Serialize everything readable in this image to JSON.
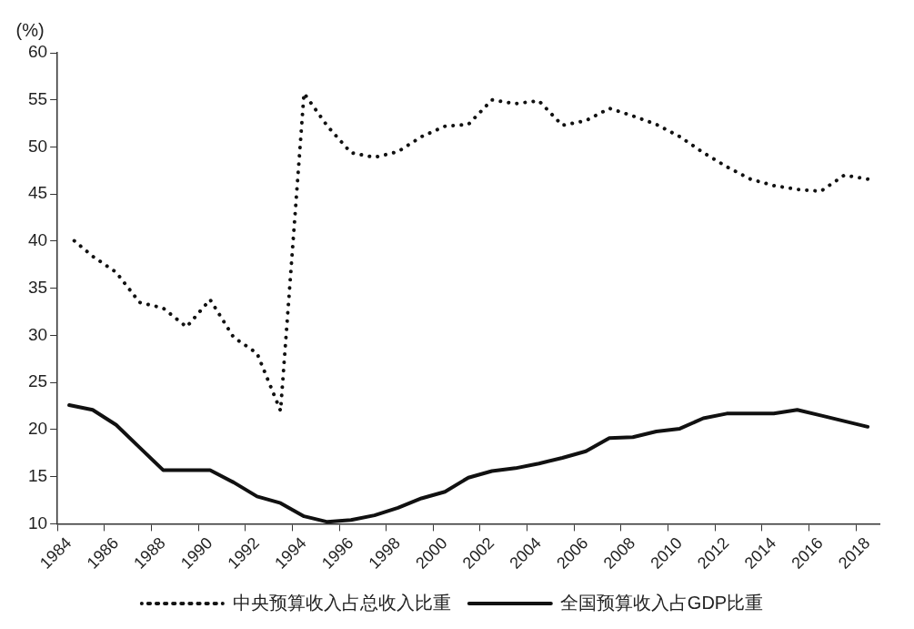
{
  "chart_data": {
    "type": "line",
    "ylabel": "(%)",
    "categories": [
      "1984",
      null,
      "1986",
      null,
      "1988",
      null,
      "1990",
      null,
      "1992",
      null,
      "1994",
      null,
      "1996",
      null,
      "1998",
      null,
      "2000",
      null,
      "2002",
      null,
      "2004",
      null,
      "2006",
      null,
      "2008",
      null,
      "2010",
      null,
      "2012",
      null,
      "2014",
      null,
      "2016",
      null,
      "2018"
    ],
    "series": [
      {
        "name": "中央预算收入占总收入比重",
        "color": "#111111",
        "line_style": "dotted",
        "values": [
          40.5,
          38.4,
          36.7,
          33.5,
          32.9,
          30.9,
          33.8,
          29.8,
          28.1,
          22.0,
          55.7,
          52.2,
          49.4,
          48.9,
          49.5,
          51.1,
          52.2,
          52.4,
          55.0,
          54.6,
          54.9,
          52.3,
          52.8,
          54.1,
          53.3,
          52.4,
          51.1,
          49.4,
          47.9,
          46.6,
          45.9,
          45.5,
          45.3,
          47.0,
          46.6
        ]
      },
      {
        "name": "全国预算收入占GDP比重",
        "color": "#111111",
        "line_style": "solid",
        "values": [
          22.6,
          22.1,
          20.5,
          18.1,
          15.7,
          15.7,
          15.7,
          14.4,
          12.9,
          12.2,
          10.8,
          10.2,
          10.4,
          10.9,
          11.7,
          12.7,
          13.4,
          14.9,
          15.6,
          15.9,
          16.4,
          17.0,
          17.7,
          19.1,
          19.2,
          19.8,
          20.1,
          21.2,
          21.7,
          21.7,
          21.7,
          22.1,
          21.5,
          20.9,
          20.3
        ]
      }
    ],
    "ylim": [
      10,
      60
    ],
    "yticks": [
      10,
      15,
      20,
      25,
      30,
      35,
      40,
      45,
      50,
      55,
      60
    ],
    "grid": false,
    "legend": "bottom",
    "marker": "none"
  }
}
